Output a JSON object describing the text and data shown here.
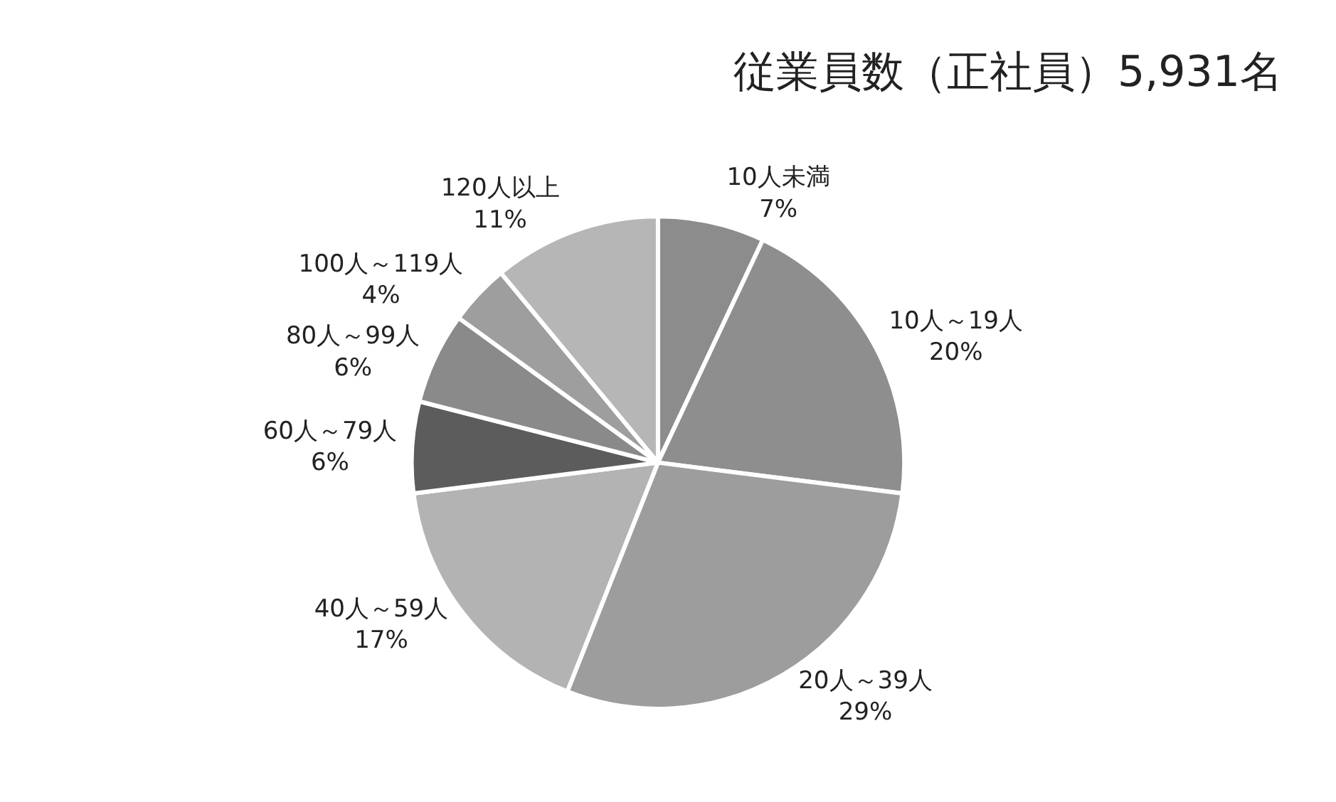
{
  "chart_data": {
    "type": "pie",
    "title": "従業員数（正社員）5,931名",
    "categories": [
      "10人未満",
      "10人～19人",
      "20人～39人",
      "40人～59人",
      "60人～79人",
      "80人～99人",
      "100人～119人",
      "120人以上"
    ],
    "values": [
      7,
      20,
      29,
      17,
      6,
      6,
      4,
      11
    ],
    "value_labels": [
      "7%",
      "20%",
      "29%",
      "17%",
      "6%",
      "6%",
      "4%",
      "11%"
    ],
    "colors": [
      "#8c8c8c",
      "#8e8e8e",
      "#9d9d9d",
      "#b3b3b3",
      "#5c5c5c",
      "#8a8a8a",
      "#9e9e9e",
      "#b6b6b6"
    ],
    "legend": false
  }
}
